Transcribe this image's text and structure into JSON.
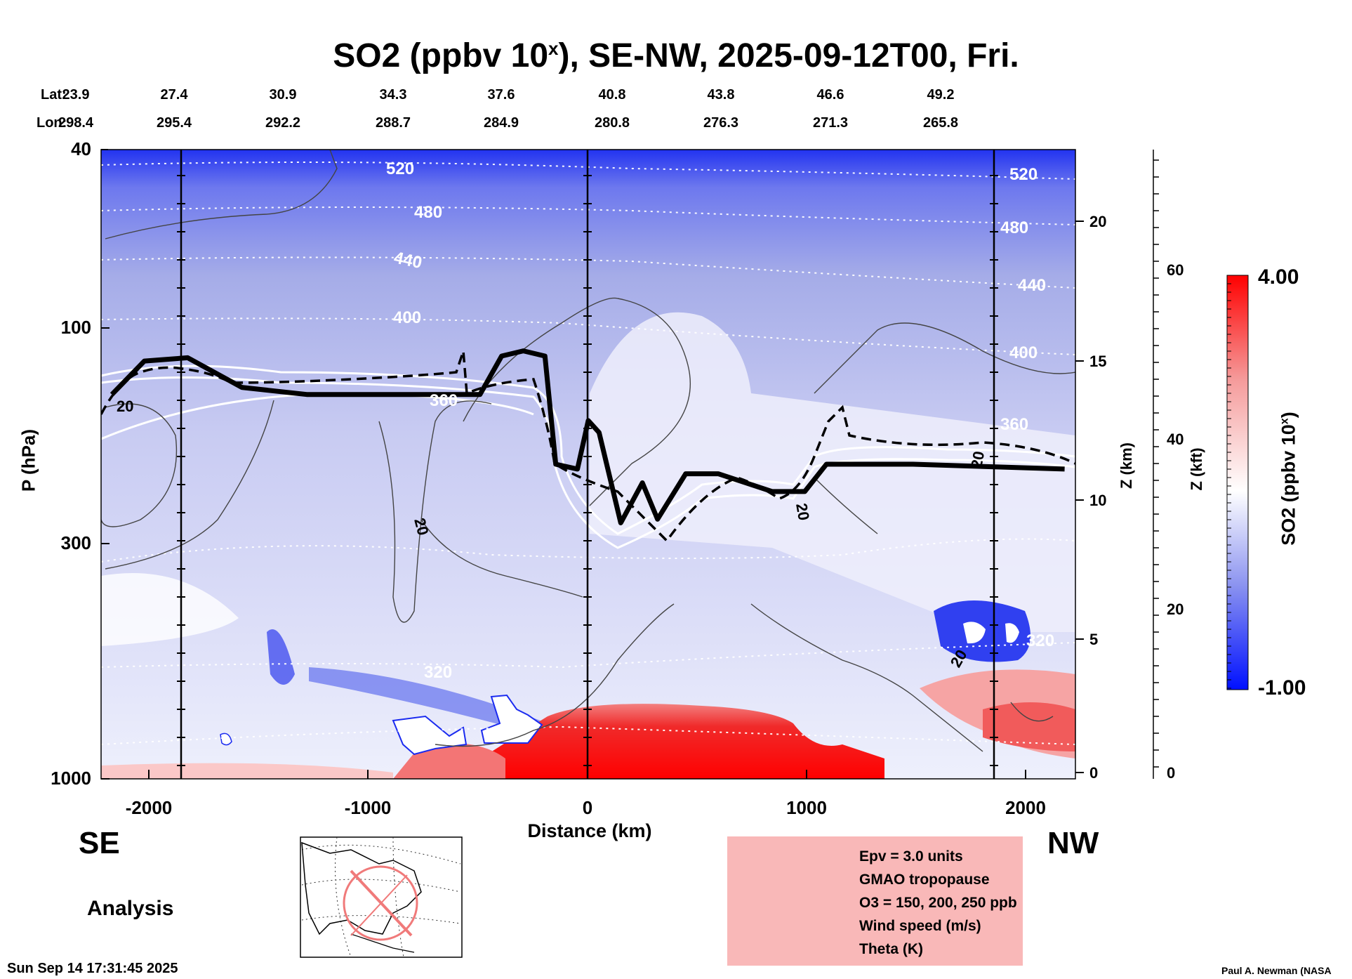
{
  "title": {
    "text": "SO2 (ppbv 10",
    "sup": "x",
    "rest": "), SE-NW, 2025-09-12T00, Fri."
  },
  "coords": {
    "lat_label": "Lat:",
    "lon_label": "Lon:",
    "lat": [
      "23.9",
      "27.4",
      "30.9",
      "34.3",
      "37.6",
      "40.8",
      "43.8",
      "46.6",
      "49.2"
    ],
    "lon": [
      "298.4",
      "295.4",
      "292.2",
      "288.7",
      "284.9",
      "280.8",
      "276.3",
      "271.3",
      "265.8"
    ]
  },
  "axes": {
    "y_label": "P (hPa)",
    "y_ticks": [
      "40",
      "100",
      "300",
      "1000"
    ],
    "x_label": "Distance (km)",
    "x_ticks": [
      "-2000",
      "-1000",
      "0",
      "1000",
      "2000"
    ],
    "z_km_label": "Z (km)",
    "z_km_ticks": [
      "20",
      "15",
      "10",
      "5",
      "0"
    ],
    "z_kft_label": "Z (kft)",
    "z_kft_ticks": [
      "60",
      "40",
      "20",
      "0"
    ]
  },
  "colorbar": {
    "label_text": "SO2 (ppbv 10",
    "label_sup": "x",
    "label_rest": ")",
    "max": "4.00",
    "min": "-1.00",
    "colors": {
      "high": "#ff0000",
      "mid": "#ffffff",
      "low": "#0010ff"
    }
  },
  "contour_labels": {
    "theta": [
      "520",
      "480",
      "440",
      "400",
      "360",
      "320",
      "520",
      "480",
      "440",
      "400",
      "360",
      "320"
    ],
    "wind": [
      "20",
      "20",
      "20",
      "20",
      "20"
    ]
  },
  "directions": {
    "left": "SE",
    "right": "NW"
  },
  "analysis_label": "Analysis",
  "timestamp": "Sun Sep 14 17:31:45 2025",
  "credit": "Paul A. Newman (NASA",
  "legend": [
    {
      "label": "Epv = 3.0 units",
      "style": "dashed"
    },
    {
      "label": "GMAO tropopause",
      "style": "thick"
    },
    {
      "label": "O3 = 150, 200, 250 ppb",
      "style": "white"
    },
    {
      "label": "Wind speed (m/s)",
      "style": "thin"
    },
    {
      "label": "Theta (K)",
      "style": "dotted"
    }
  ],
  "chart_data": {
    "type": "heatmap",
    "title": "SO2 (ppbv 10^x), SE-NW, 2025-09-12T00, Fri.",
    "xlabel": "Distance (km)",
    "ylabel": "P (hPa)",
    "xlim": [
      -2250,
      2250
    ],
    "ylim": [
      1000,
      40
    ],
    "y_scale": "log",
    "color_range": [
      -1.0,
      4.0
    ],
    "tropopause_hpa": [
      {
        "x": -2200,
        "p": 140
      },
      {
        "x": -2050,
        "p": 118
      },
      {
        "x": -1850,
        "p": 116
      },
      {
        "x": -1600,
        "p": 135
      },
      {
        "x": -1300,
        "p": 140
      },
      {
        "x": -800,
        "p": 140
      },
      {
        "x": -500,
        "p": 140
      },
      {
        "x": -400,
        "p": 115
      },
      {
        "x": -300,
        "p": 112
      },
      {
        "x": -200,
        "p": 115
      },
      {
        "x": -150,
        "p": 200
      },
      {
        "x": -50,
        "p": 205
      },
      {
        "x": 0,
        "p": 160
      },
      {
        "x": 50,
        "p": 170
      },
      {
        "x": 150,
        "p": 270
      },
      {
        "x": 250,
        "p": 220
      },
      {
        "x": 320,
        "p": 265
      },
      {
        "x": 450,
        "p": 210
      },
      {
        "x": 600,
        "p": 210
      },
      {
        "x": 850,
        "p": 230
      },
      {
        "x": 1000,
        "p": 230
      },
      {
        "x": 1100,
        "p": 200
      },
      {
        "x": 1500,
        "p": 200
      },
      {
        "x": 2200,
        "p": 205
      }
    ],
    "features": [
      {
        "region": "x 0 to 900 km, p 750-1000 hPa",
        "so2_log10": 3.5
      },
      {
        "region": "x 1600 to 2250 km, p 650-1000 hPa",
        "so2_log10": 2.0
      },
      {
        "region": "x -2250 to -1000 km, p 40-100 hPa",
        "so2_log10": -0.6
      }
    ]
  }
}
